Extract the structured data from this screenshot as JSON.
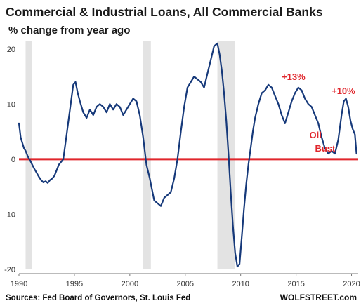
{
  "chart_data": {
    "type": "line",
    "title": "Commercial & Industrial Loans, All Commercial Banks",
    "subtitle": "% change from year ago",
    "xlabel": "",
    "ylabel": "",
    "xlim": [
      1990.0,
      2020.6
    ],
    "ylim": [
      -20,
      21.5
    ],
    "x_ticks": [
      "1990",
      "1995",
      "2000",
      "2005",
      "2010",
      "2015",
      "2020"
    ],
    "y_ticks": [
      "20",
      "10",
      "0",
      "-10",
      "-20"
    ],
    "grid": false,
    "recessions": [
      [
        1990.6,
        1991.2
      ],
      [
        2001.2,
        2001.9
      ],
      [
        2007.9,
        2009.5
      ]
    ],
    "reference_line": {
      "y": 0,
      "color": "#e0262c"
    },
    "series": [
      {
        "color": "#16397a",
        "x": [
          1990.0,
          1990.15,
          1990.3,
          1990.45,
          1990.6,
          1990.8,
          1991.0,
          1991.2,
          1991.4,
          1991.6,
          1991.8,
          1992.0,
          1992.2,
          1992.4,
          1992.6,
          1992.8,
          1993.0,
          1993.2,
          1993.4,
          1993.6,
          1993.8,
          1994.0,
          1994.3,
          1994.6,
          1994.9,
          1995.1,
          1995.3,
          1995.5,
          1995.8,
          1996.1,
          1996.4,
          1996.7,
          1997.0,
          1997.3,
          1997.6,
          1997.9,
          1998.2,
          1998.5,
          1998.8,
          1999.1,
          1999.4,
          1999.7,
          2000.0,
          2000.3,
          2000.6,
          2000.9,
          2001.2,
          2001.5,
          2001.8,
          2002.0,
          2002.2,
          2002.5,
          2002.8,
          2003.1,
          2003.4,
          2003.7,
          2004.0,
          2004.3,
          2004.6,
          2004.9,
          2005.2,
          2005.5,
          2005.8,
          2006.1,
          2006.4,
          2006.7,
          2007.0,
          2007.3,
          2007.6,
          2007.9,
          2008.1,
          2008.3,
          2008.5,
          2008.7,
          2008.9,
          2009.1,
          2009.3,
          2009.5,
          2009.7,
          2009.9,
          2010.1,
          2010.3,
          2010.5,
          2010.7,
          2010.9,
          2011.1,
          2011.3,
          2011.6,
          2011.9,
          2012.2,
          2012.5,
          2012.8,
          2013.1,
          2013.4,
          2013.7,
          2014.0,
          2014.3,
          2014.6,
          2014.9,
          2015.2,
          2015.5,
          2015.8,
          2016.1,
          2016.4,
          2016.7,
          2017.0,
          2017.3,
          2017.6,
          2017.9,
          2018.2,
          2018.5,
          2018.8,
          2019.1,
          2019.3,
          2019.5,
          2019.7,
          2019.9,
          2020.1,
          2020.3,
          2020.45
        ],
        "values": [
          6.5,
          4.0,
          3.0,
          2.0,
          1.5,
          0.5,
          -0.2,
          -1.0,
          -1.8,
          -2.5,
          -3.2,
          -3.8,
          -4.2,
          -4.0,
          -4.3,
          -3.8,
          -3.5,
          -3.0,
          -2.0,
          -1.0,
          -0.5,
          0.0,
          4.5,
          9.0,
          13.5,
          14.0,
          12.0,
          10.5,
          8.5,
          7.5,
          9.0,
          8.0,
          9.5,
          10.0,
          9.5,
          8.5,
          10.0,
          9.0,
          10.0,
          9.5,
          8.0,
          9.0,
          10.0,
          11.0,
          10.5,
          8.0,
          4.0,
          -1.0,
          -3.5,
          -5.5,
          -7.5,
          -8.0,
          -8.5,
          -7.0,
          -6.5,
          -6.0,
          -3.5,
          0.0,
          5.0,
          9.5,
          13.0,
          14.0,
          15.0,
          14.5,
          14.0,
          13.0,
          15.5,
          18.0,
          20.5,
          21.0,
          19.0,
          16.0,
          12.0,
          7.0,
          1.0,
          -6.0,
          -12.0,
          -17.0,
          -19.5,
          -19.0,
          -14.0,
          -9.0,
          -4.5,
          -1.0,
          2.0,
          5.0,
          7.5,
          10.0,
          12.0,
          12.5,
          13.5,
          13.0,
          11.5,
          10.0,
          8.0,
          6.5,
          8.5,
          10.5,
          12.0,
          13.0,
          12.5,
          11.0,
          10.0,
          9.5,
          8.0,
          6.5,
          4.0,
          2.0,
          1.0,
          1.5,
          1.0,
          3.5,
          8.0,
          10.5,
          11.0,
          9.5,
          7.0,
          5.5,
          4.5,
          1.0
        ]
      }
    ],
    "annotations": [
      {
        "text": "+13%",
        "x": 2013.7,
        "y": 14.4,
        "color": "#e0262c"
      },
      {
        "text": "+10%",
        "x": 2018.2,
        "y": 11.8,
        "color": "#e0262c"
      },
      {
        "text": "Oil",
        "x": 2016.2,
        "y": 3.8,
        "color": "#e0262c"
      },
      {
        "text": "Bust",
        "x": 2016.7,
        "y": 1.4,
        "color": "#e0262c"
      }
    ]
  },
  "footer": {
    "source": "Sources: Fed Board of Governors, St. Louis Fed",
    "brand": "WOLFSTREET.com"
  }
}
